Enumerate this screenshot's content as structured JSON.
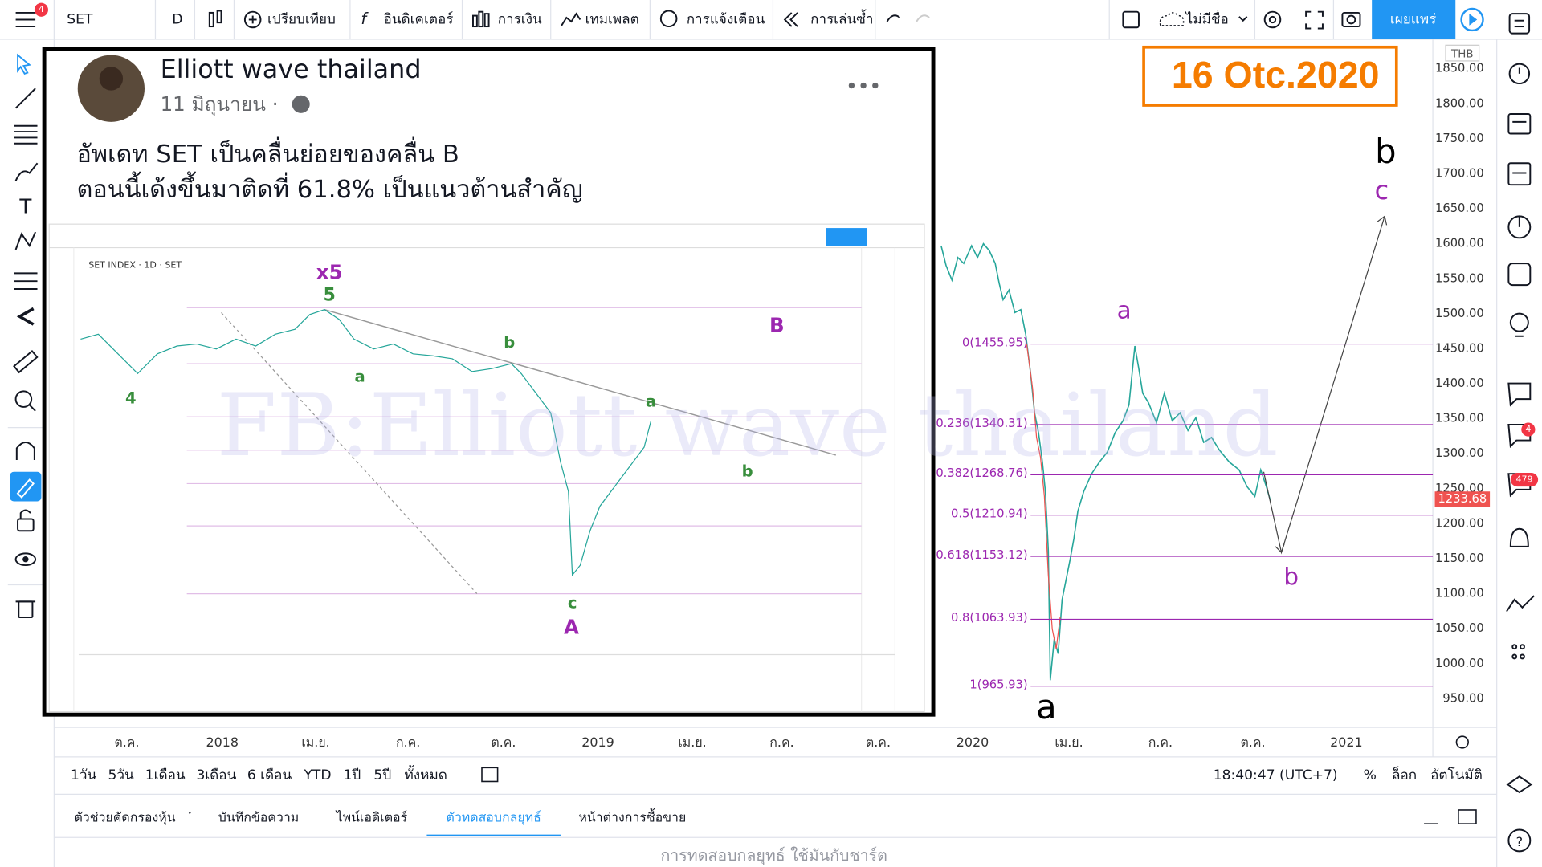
{
  "toolbar": {
    "symbol": "SET",
    "interval": "D",
    "compare": "เปรียบเทียบ",
    "indicators": "อินดิเคเตอร์",
    "financials": "การเงิน",
    "templates": "เทมเพลต",
    "alerts": "การแจ้งเตือน",
    "replay": "การเล่นซ้ำ",
    "layout": "ไม่มีชื่อ",
    "publish": "เผยแพร่",
    "badge": "4"
  },
  "post": {
    "author": "Elliott wave thailand",
    "date": "11 มิถุนายน ·",
    "text": [
      "อัพเดท SET  เป็นคลื่นย่อยของคลื่น B",
      "ตอนนี้เด้งขึ้นมาติดที่ 61.8%  เป็นแนวต้านสำคัญ"
    ],
    "image_labels": [
      "x5",
      "5",
      "B",
      "a",
      "b",
      "a",
      "b",
      "4",
      "c",
      "A"
    ]
  },
  "watermark": "FB:Elliott wave thailand",
  "annotation": "16 Otc.2020",
  "price_axis": {
    "currency": "THB",
    "labels": [
      "1850.00",
      "1800.00",
      "1750.00",
      "1700.00",
      "1650.00",
      "1600.00",
      "1550.00",
      "1500.00",
      "1450.00",
      "1400.00",
      "1350.00",
      "1300.00",
      "1250.00",
      "1200.00",
      "1150.00",
      "1100.00",
      "1050.00",
      "1000.00",
      "950.00"
    ],
    "last_price": "1233.68"
  },
  "fib_levels": [
    "0(1455.95)",
    "0.236(1340.31)",
    "0.382(1268.76)",
    "0.5(1210.94)",
    "0.618(1153.12)",
    "0.8(1063.93)",
    "1(965.93)"
  ],
  "waves": [
    "b",
    "c",
    "a",
    "b",
    "a"
  ],
  "time_axis": [
    "ต.ค.",
    "2018",
    "เม.ย.",
    "ก.ค.",
    "ต.ค.",
    "2019",
    "เม.ย.",
    "ก.ค.",
    "ต.ค.",
    "2020",
    "เม.ย.",
    "ก.ค.",
    "ต.ค.",
    "2021"
  ],
  "ranges": [
    "1วัน",
    "5วัน",
    "1เดือน",
    "3เดือน",
    "6 เดือน",
    "YTD",
    "1ปี",
    "5ปี",
    "ทั้งหมด"
  ],
  "clock": "18:40:47 (UTC+7)",
  "scale_options": [
    "%",
    "ล็อก",
    "อัตโนมัติ"
  ],
  "tabs": [
    "ตัวช่วยคัดกรองหุ้น",
    "บันทึกข้อความ",
    "ไพน์เอดิเตอร์",
    "ตัวทดสอบกลยุทธ์",
    "หน้าต่างการซื้อขาย"
  ],
  "footer": "การทดสอบกลยุทธ์ ใช้มันกับชาร์ต",
  "sidebar_badges": [
    "4",
    "479"
  ]
}
